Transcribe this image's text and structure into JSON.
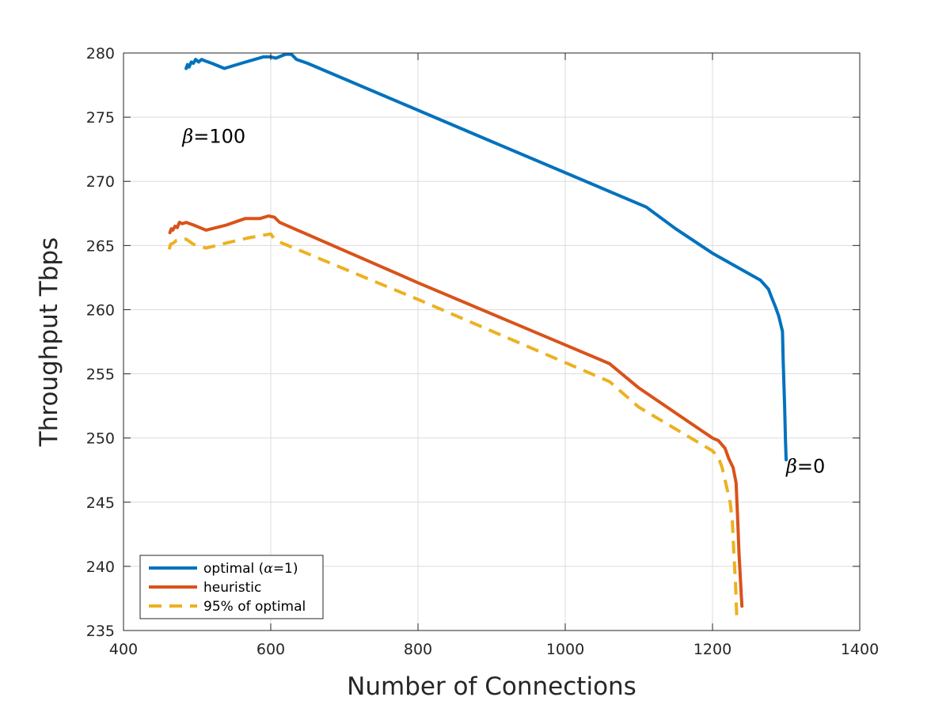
{
  "chart_data": {
    "type": "line",
    "xlabel": "Number of Connections",
    "ylabel": "Throughput Tbps",
    "xlim": [
      400,
      1400
    ],
    "ylim": [
      235,
      280
    ],
    "xticks": [
      400,
      600,
      800,
      1000,
      1200,
      1400
    ],
    "yticks": [
      235,
      240,
      245,
      250,
      255,
      260,
      265,
      270,
      275,
      280
    ],
    "grid": true,
    "legend_position": "bottom-left",
    "series": [
      {
        "name": "optimal (α=1)",
        "name_parts": [
          "optimal (",
          "α",
          "=1)"
        ],
        "color": "#0072BD",
        "dash": "solid",
        "points": [
          [
            485,
            278.8
          ],
          [
            487,
            279.1
          ],
          [
            489,
            278.9
          ],
          [
            492,
            279.3
          ],
          [
            495,
            279.2
          ],
          [
            498,
            279.5
          ],
          [
            502,
            279.3
          ],
          [
            506,
            279.5
          ],
          [
            510,
            279.4
          ],
          [
            520,
            279.2
          ],
          [
            537,
            278.8
          ],
          [
            560,
            279.2
          ],
          [
            590,
            279.7
          ],
          [
            600,
            279.7
          ],
          [
            607,
            279.6
          ],
          [
            620,
            279.9
          ],
          [
            628,
            279.9
          ],
          [
            635,
            279.5
          ],
          [
            650,
            279.2
          ],
          [
            900,
            273.1
          ],
          [
            1110,
            268.0
          ],
          [
            1150,
            266.3
          ],
          [
            1200,
            264.4
          ],
          [
            1265,
            262.3
          ],
          [
            1276,
            261.6
          ],
          [
            1280,
            261.0
          ],
          [
            1285,
            260.3
          ],
          [
            1290,
            259.5
          ],
          [
            1295,
            258.3
          ],
          [
            1296,
            256.0
          ],
          [
            1298,
            252.5
          ],
          [
            1299,
            250.0
          ],
          [
            1300,
            248.3
          ]
        ]
      },
      {
        "name": "heuristic",
        "color": "#D95319",
        "dash": "solid",
        "points": [
          [
            463,
            266.0
          ],
          [
            465,
            266.3
          ],
          [
            467,
            266.2
          ],
          [
            470,
            266.5
          ],
          [
            473,
            266.4
          ],
          [
            476,
            266.8
          ],
          [
            480,
            266.7
          ],
          [
            485,
            266.8
          ],
          [
            495,
            266.6
          ],
          [
            512,
            266.2
          ],
          [
            540,
            266.6
          ],
          [
            565,
            267.1
          ],
          [
            585,
            267.1
          ],
          [
            597,
            267.3
          ],
          [
            605,
            267.2
          ],
          [
            612,
            266.8
          ],
          [
            800,
            262.1
          ],
          [
            1060,
            255.8
          ],
          [
            1100,
            253.9
          ],
          [
            1200,
            250.0
          ],
          [
            1208,
            249.8
          ],
          [
            1217,
            249.2
          ],
          [
            1222,
            248.4
          ],
          [
            1228,
            247.7
          ],
          [
            1232,
            246.5
          ],
          [
            1234,
            244.0
          ],
          [
            1236,
            241.0
          ],
          [
            1238,
            239.0
          ],
          [
            1239,
            237.8
          ],
          [
            1240,
            236.9
          ]
        ]
      },
      {
        "name": "95% of optimal",
        "color": "#EDB120",
        "dash": "dashed",
        "points": [
          [
            462,
            264.7
          ],
          [
            464,
            265.1
          ],
          [
            468,
            265.2
          ],
          [
            472,
            265.4
          ],
          [
            478,
            265.4
          ],
          [
            485,
            265.5
          ],
          [
            495,
            265.1
          ],
          [
            512,
            264.8
          ],
          [
            540,
            265.2
          ],
          [
            570,
            265.6
          ],
          [
            590,
            265.8
          ],
          [
            600,
            265.9
          ],
          [
            605,
            265.5
          ],
          [
            615,
            265.2
          ],
          [
            800,
            260.8
          ],
          [
            1060,
            254.4
          ],
          [
            1100,
            252.4
          ],
          [
            1200,
            249.0
          ],
          [
            1208,
            248.5
          ],
          [
            1213,
            247.7
          ],
          [
            1220,
            246.0
          ],
          [
            1224,
            245.0
          ],
          [
            1227,
            243.5
          ],
          [
            1229,
            241.0
          ],
          [
            1231,
            239.0
          ],
          [
            1232,
            237.5
          ],
          [
            1233,
            235.8
          ]
        ]
      }
    ],
    "annotations": [
      {
        "symbol": "β",
        "text": "=100",
        "x": 480,
        "y": 273.5
      },
      {
        "symbol": "β",
        "text": "=0",
        "x": 1300,
        "y": 247.8
      }
    ]
  }
}
